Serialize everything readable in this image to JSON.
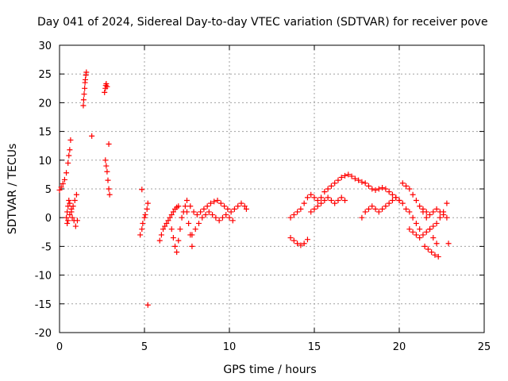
{
  "chart_data": {
    "type": "scatter",
    "title": "Day 041 of 2024, Sidereal Day-to-day VTEC variation (SDTVAR) for receiver pove",
    "xlabel": "GPS time / hours",
    "ylabel": "SDTVAR / TECUs",
    "xlim": [
      0,
      25
    ],
    "ylim": [
      -20,
      30
    ],
    "xticks": [
      0,
      5,
      10,
      15,
      20,
      25
    ],
    "xtick_labels": [
      "0",
      "5",
      "10",
      "15",
      "20",
      "25"
    ],
    "yticks": [
      -20,
      -15,
      -10,
      -5,
      0,
      5,
      10,
      15,
      20,
      25,
      30
    ],
    "ytick_labels": [
      "-20",
      "-15",
      "-10",
      "-5",
      "0",
      "5",
      "10",
      "15",
      "20",
      "25",
      "30"
    ],
    "grid": true,
    "marker": "+",
    "color": "#ff0000",
    "series": [
      {
        "name": "segment-1",
        "x": [
          0.0,
          0.1,
          0.2,
          0.3,
          0.4,
          0.5,
          0.55,
          0.6,
          0.65
        ],
        "y": [
          4.8,
          5.3,
          5.9,
          6.6,
          7.8,
          9.5,
          10.8,
          11.8,
          13.5
        ]
      },
      {
        "name": "segment-2",
        "x": [
          0.4,
          0.45,
          0.5,
          0.55,
          0.6,
          0.7,
          0.8,
          0.9,
          1.0,
          0.45,
          0.5,
          0.6,
          0.7,
          0.75,
          0.85,
          0.95,
          1.05
        ],
        "y": [
          0.0,
          1.0,
          2.0,
          3.0,
          2.5,
          1.5,
          2.0,
          3.0,
          4.0,
          -1.0,
          -0.5,
          0.5,
          1.0,
          0.0,
          -0.5,
          -1.5,
          -0.5
        ]
      },
      {
        "name": "segment-3",
        "x": [
          1.4,
          1.42,
          1.45,
          1.48,
          1.5,
          1.52,
          1.55,
          1.58
        ],
        "y": [
          19.5,
          20.5,
          21.5,
          22.5,
          23.5,
          24.0,
          24.8,
          25.3
        ]
      },
      {
        "name": "segment-4",
        "x": [
          1.9
        ],
        "y": [
          14.2
        ]
      },
      {
        "name": "segment-5",
        "x": [
          2.65,
          2.7,
          2.72,
          2.75,
          2.8
        ],
        "y": [
          21.8,
          22.5,
          23.0,
          23.3,
          22.8
        ]
      },
      {
        "name": "segment-6",
        "x": [
          2.7,
          2.75,
          2.8,
          2.85,
          2.9,
          2.95,
          2.9
        ],
        "y": [
          10.0,
          9.0,
          8.0,
          6.5,
          5.0,
          4.0,
          12.8
        ]
      },
      {
        "name": "segment-7",
        "x": [
          4.75,
          4.85,
          4.9,
          5.0,
          5.05,
          5.15,
          5.2,
          4.85,
          5.2
        ],
        "y": [
          -3.0,
          -2.0,
          -1.0,
          0.0,
          0.5,
          1.5,
          2.5,
          4.9,
          -15.2
        ]
      },
      {
        "name": "segment-8",
        "x": [
          5.9,
          6.0,
          6.1,
          6.2,
          6.3,
          6.4,
          6.5,
          6.6,
          6.7,
          6.8,
          6.9,
          7.0
        ],
        "y": [
          -4.0,
          -3.0,
          -2.0,
          -1.5,
          -1.0,
          -0.5,
          0.0,
          0.5,
          1.0,
          1.5,
          1.8,
          2.0
        ]
      },
      {
        "name": "segment-9",
        "x": [
          6.6,
          6.7,
          6.8,
          6.9,
          7.0,
          7.1,
          7.2,
          7.3,
          7.4,
          7.5,
          7.6,
          7.7,
          7.8
        ],
        "y": [
          -2.0,
          -3.5,
          -5.0,
          -6.0,
          -4.0,
          -2.0,
          0.0,
          1.0,
          2.0,
          1.0,
          -1.0,
          -3.0,
          -5.0
        ]
      },
      {
        "name": "segment-10",
        "x": [
          7.5,
          7.7,
          7.9,
          8.1,
          8.3,
          8.5,
          8.7,
          8.9,
          9.1,
          9.3,
          9.5,
          9.7,
          9.9,
          10.1,
          10.3,
          10.5,
          10.7,
          10.9,
          11.0
        ],
        "y": [
          3.0,
          2.0,
          1.0,
          0.5,
          1.0,
          1.5,
          2.0,
          2.5,
          2.8,
          3.0,
          2.5,
          2.0,
          1.5,
          1.0,
          1.5,
          2.0,
          2.5,
          2.0,
          1.5
        ]
      },
      {
        "name": "segment-11",
        "x": [
          7.8,
          8.0,
          8.2,
          8.4,
          8.6,
          8.8,
          9.0,
          9.2,
          9.4,
          9.6,
          9.8,
          10.0,
          10.2
        ],
        "y": [
          -3.0,
          -2.0,
          -1.0,
          0.0,
          0.5,
          1.0,
          0.5,
          0.0,
          -0.5,
          0.0,
          0.5,
          0.0,
          -0.5
        ]
      },
      {
        "name": "segment-12",
        "x": [
          13.6,
          13.8,
          14.0,
          14.2,
          14.4,
          14.6,
          14.8,
          15.0,
          15.2,
          15.4,
          15.6,
          15.8,
          16.0,
          16.2,
          16.4,
          16.6,
          16.8,
          17.0,
          17.2,
          17.4,
          17.6,
          17.8,
          18.0,
          18.2,
          18.4,
          18.6,
          18.8,
          19.0,
          19.2,
          19.4,
          19.6,
          19.8,
          20.0
        ],
        "y": [
          0.0,
          0.5,
          1.0,
          1.5,
          2.5,
          3.5,
          4.0,
          3.5,
          3.0,
          3.5,
          4.5,
          5.0,
          5.5,
          6.0,
          6.5,
          7.0,
          7.3,
          7.5,
          7.2,
          6.8,
          6.5,
          6.2,
          6.0,
          5.5,
          5.0,
          4.8,
          5.0,
          5.2,
          5.0,
          4.5,
          4.0,
          3.5,
          3.0
        ]
      },
      {
        "name": "segment-13",
        "x": [
          13.6,
          13.8,
          14.0,
          14.2,
          14.4,
          14.6
        ],
        "y": [
          -3.5,
          -4.0,
          -4.5,
          -4.8,
          -4.5,
          -3.8
        ]
      },
      {
        "name": "segment-14",
        "x": [
          14.8,
          15.0,
          15.2,
          15.4,
          15.6,
          15.8,
          16.0,
          16.2,
          16.4,
          16.6,
          16.8
        ],
        "y": [
          1.0,
          1.5,
          2.0,
          2.5,
          3.0,
          3.5,
          3.0,
          2.5,
          3.0,
          3.5,
          3.0
        ]
      },
      {
        "name": "segment-15",
        "x": [
          17.8,
          18.0,
          18.2,
          18.4,
          18.6,
          18.8,
          19.0,
          19.2,
          19.4,
          19.6,
          19.8,
          20.0,
          20.2,
          20.4,
          20.6,
          20.8,
          21.0,
          21.2
        ],
        "y": [
          0.0,
          1.0,
          1.5,
          2.0,
          1.5,
          1.0,
          1.5,
          2.0,
          2.5,
          3.0,
          3.5,
          3.0,
          2.5,
          1.5,
          1.0,
          0.0,
          -1.0,
          -2.0
        ]
      },
      {
        "name": "segment-16",
        "x": [
          20.2,
          20.4,
          20.6,
          20.8,
          21.0,
          21.2,
          21.4,
          21.6,
          21.8,
          22.0,
          22.2
        ],
        "y": [
          6.0,
          5.5,
          5.0,
          4.0,
          3.0,
          2.0,
          1.0,
          0.0,
          -2.0,
          -3.5,
          -4.5
        ]
      },
      {
        "name": "segment-17",
        "x": [
          20.6,
          20.8,
          21.0,
          21.2,
          21.4,
          21.6,
          21.8,
          22.0,
          22.2,
          22.4,
          22.6,
          22.8
        ],
        "y": [
          -2.0,
          -2.5,
          -3.0,
          -3.5,
          -3.0,
          -2.5,
          -2.0,
          -1.5,
          -1.0,
          0.0,
          1.0,
          2.5
        ]
      },
      {
        "name": "segment-18",
        "x": [
          21.5,
          21.7,
          21.9,
          22.1,
          22.3
        ],
        "y": [
          -5.0,
          -5.5,
          -6.0,
          -6.5,
          -6.8
        ]
      },
      {
        "name": "segment-19",
        "x": [
          21.4,
          21.6,
          21.8,
          22.0,
          22.2,
          22.4,
          22.6,
          22.8,
          22.9
        ],
        "y": [
          1.5,
          1.0,
          0.5,
          1.0,
          1.5,
          1.0,
          0.5,
          0.0,
          -4.5
        ]
      }
    ]
  }
}
